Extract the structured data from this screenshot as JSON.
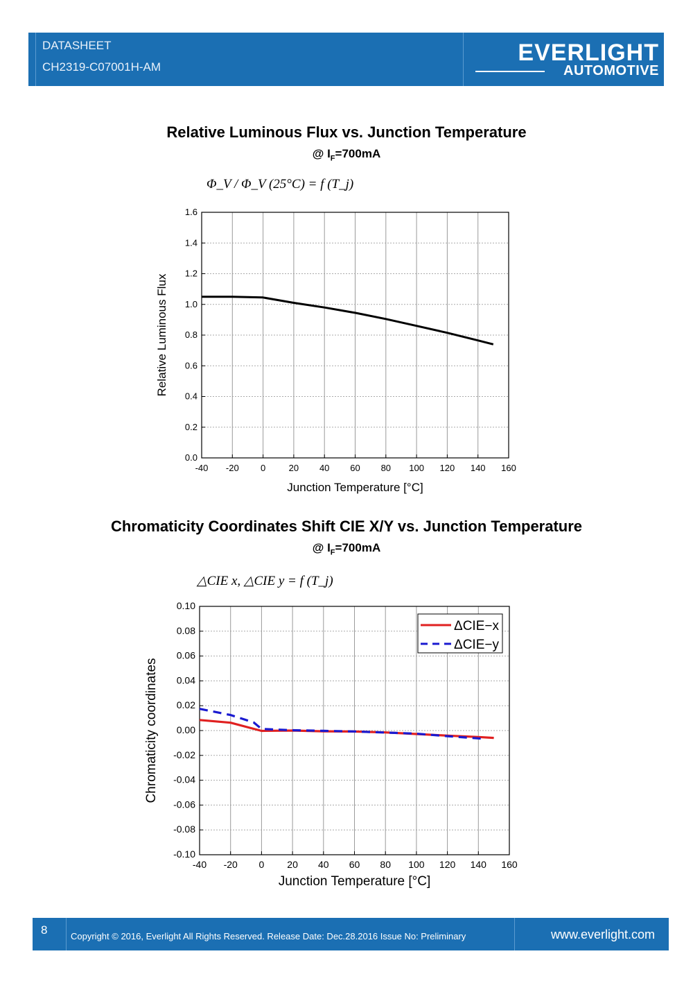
{
  "header": {
    "label": "DATASHEET",
    "part_number": "CH2319-C07001H-AM",
    "brand": "EVERLIGHT",
    "brand_sub": "AUTOMOTIVE"
  },
  "chart1": {
    "title": "Relative Luminous Flux vs. Junction Temperature",
    "subtitle_prefix": "@ I",
    "subtitle_sub": "F",
    "subtitle_suffix": "=700mA",
    "formula": "Φ_V / Φ_V (25°C) = f (T_j)"
  },
  "chart2": {
    "title": "Chromaticity Coordinates Shift CIE X/Y vs. Junction Temperature",
    "subtitle_prefix": "@ I",
    "subtitle_sub": "F",
    "subtitle_suffix": "=700mA",
    "formula": "△CIE x, △CIE y = f (T_j)"
  },
  "chart_data": [
    {
      "type": "line",
      "title": "Relative Luminous Flux vs. Junction Temperature",
      "xlabel": "Junction Temperature [°C]",
      "ylabel": "Relative Luminous Flux",
      "xlim": [
        -40,
        160
      ],
      "ylim": [
        0.0,
        1.6
      ],
      "xticks": [
        "-40",
        "-20",
        "0",
        "20",
        "40",
        "60",
        "80",
        "100",
        "120",
        "140",
        "160"
      ],
      "yticks": [
        "0.0",
        "0.2",
        "0.4",
        "0.6",
        "0.8",
        "1.0",
        "1.2",
        "1.4",
        "1.6"
      ],
      "grid": true,
      "series": [
        {
          "name": "Relative Luminous Flux",
          "color": "#000000",
          "x": [
            -40,
            -20,
            0,
            20,
            40,
            60,
            80,
            100,
            120,
            140,
            150
          ],
          "y": [
            1.05,
            1.05,
            1.045,
            1.01,
            0.98,
            0.945,
            0.905,
            0.86,
            0.815,
            0.765,
            0.74
          ]
        }
      ]
    },
    {
      "type": "line",
      "title": "Chromaticity Coordinates Shift CIE X/Y vs. Junction Temperature",
      "xlabel": "Junction Temperature [°C]",
      "ylabel": "Chromaticity coordinates",
      "xlim": [
        -40,
        160
      ],
      "ylim": [
        -0.1,
        0.1
      ],
      "xticks": [
        "-40",
        "-20",
        "0",
        "20",
        "40",
        "60",
        "80",
        "100",
        "120",
        "140",
        "160"
      ],
      "yticks": [
        "-0.10",
        "-0.08",
        "-0.06",
        "-0.04",
        "-0.02",
        "0.00",
        "0.02",
        "0.04",
        "0.06",
        "0.08",
        "0.10"
      ],
      "grid": true,
      "legend": "top-right",
      "series": [
        {
          "name": "ΔCIE−x",
          "color": "#e02020",
          "dash": false,
          "x": [
            -40,
            -20,
            0,
            20,
            40,
            60,
            80,
            100,
            120,
            140,
            150
          ],
          "y": [
            0.0085,
            0.0063,
            -0.0003,
            0.0,
            -0.0006,
            -0.0008,
            -0.0015,
            -0.0028,
            -0.0041,
            -0.0052,
            -0.0059
          ]
        },
        {
          "name": "ΔCIE−y",
          "color": "#1a1ad0",
          "dash": true,
          "x": [
            -40,
            -20,
            -5,
            0,
            20,
            40,
            60,
            80,
            100,
            120,
            140,
            145
          ],
          "y": [
            0.0175,
            0.0125,
            0.0065,
            0.0013,
            0.0003,
            -0.0002,
            -0.0007,
            -0.0016,
            -0.0025,
            -0.0045,
            -0.0063,
            -0.0068
          ]
        }
      ]
    }
  ],
  "footer": {
    "page": "8",
    "copyright": "Copyright © 2016, Everlight All Rights Reserved. Release Date: Dec.28.2016 Issue No: Preliminary",
    "website": "www.everlight.com"
  }
}
